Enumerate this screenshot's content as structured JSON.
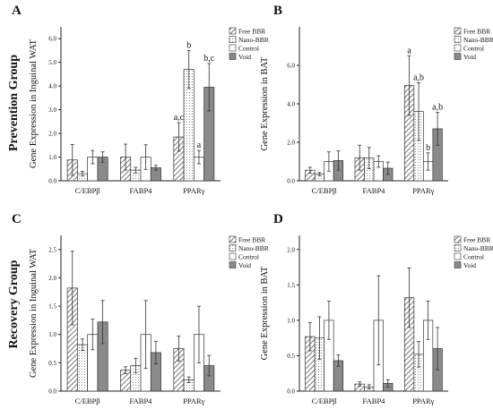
{
  "group_labels": [
    "Prevention Group",
    "Recovery Group"
  ],
  "colors": {
    "bar_stroke": "#333333",
    "axis": "#222222",
    "errbar": "#333333"
  },
  "chart_data": [
    {
      "type": "bar",
      "panel": "A",
      "ylabel": "Gene Expression in Inguinal WAT",
      "categories": [
        "C/EBPβ",
        "FABP4",
        "PPARγ"
      ],
      "ylim": [
        0,
        6.5
      ],
      "yticks": [
        "0.0",
        "1.0",
        "2.0",
        "3.0",
        "4.0",
        "5.0",
        "6.0"
      ],
      "legend_position": "top-right",
      "series": [
        {
          "name": "Free BBR",
          "pattern": "hatch",
          "values": [
            0.88,
            1.0,
            1.85
          ],
          "errors": [
            0.65,
            0.55,
            0.6
          ]
        },
        {
          "name": "Nano-BBR",
          "pattern": "dots",
          "values": [
            0.3,
            0.45,
            4.7
          ],
          "errors": [
            0.1,
            0.12,
            0.8
          ]
        },
        {
          "name": "Control",
          "pattern": "white",
          "values": [
            1.0,
            1.0,
            1.0
          ],
          "errors": [
            0.28,
            0.52,
            0.28
          ]
        },
        {
          "name": "Void",
          "pattern": "gray",
          "values": [
            1.0,
            0.55,
            3.95
          ],
          "errors": [
            0.22,
            0.1,
            1.0
          ]
        }
      ],
      "annotations": [
        {
          "text": "a,c",
          "category": 2,
          "series": 0
        },
        {
          "text": "b",
          "category": 2,
          "series": 1
        },
        {
          "text": "a",
          "category": 2,
          "series": 2
        },
        {
          "text": "b,c",
          "category": 2,
          "series": 3
        }
      ]
    },
    {
      "type": "bar",
      "panel": "B",
      "ylabel": "Gene Expression in BAT",
      "categories": [
        "C/EBPβ",
        "FABP4",
        "PPARγ"
      ],
      "ylim": [
        0,
        8
      ],
      "yticks": [
        "0.0",
        "2.0",
        "4.0",
        "6.0"
      ],
      "legend_position": "top-right",
      "series": [
        {
          "name": "Free BBR",
          "pattern": "hatch",
          "values": [
            0.55,
            1.2,
            4.95
          ],
          "errors": [
            0.15,
            0.65,
            1.55
          ]
        },
        {
          "name": "Nano-BBR",
          "pattern": "dots",
          "values": [
            0.35,
            1.18,
            3.6
          ],
          "errors": [
            0.08,
            0.55,
            1.5
          ]
        },
        {
          "name": "Control",
          "pattern": "white",
          "values": [
            1.0,
            1.0,
            1.0
          ],
          "errors": [
            0.5,
            0.3,
            0.45
          ]
        },
        {
          "name": "Void",
          "pattern": "gray",
          "values": [
            1.05,
            0.65,
            2.7
          ],
          "errors": [
            0.5,
            0.32,
            0.85
          ]
        }
      ],
      "annotations": [
        {
          "text": "a",
          "category": 2,
          "series": 0
        },
        {
          "text": "a,b",
          "category": 2,
          "series": 1
        },
        {
          "text": "b",
          "category": 2,
          "series": 2
        },
        {
          "text": "a,b",
          "category": 2,
          "series": 3
        }
      ]
    },
    {
      "type": "bar",
      "panel": "C",
      "ylabel": "Gene Expression in Inguinal WAT",
      "categories": [
        "C/EBPβ",
        "FABP4",
        "PPARγ"
      ],
      "ylim": [
        0,
        2.75
      ],
      "yticks": [
        "0.0",
        "0.5",
        "1.0",
        "1.5",
        "2.0",
        "2.5"
      ],
      "legend_position": "top-right",
      "series": [
        {
          "name": "Free BBR",
          "pattern": "hatch",
          "values": [
            1.82,
            0.37,
            0.75
          ],
          "errors": [
            0.65,
            0.06,
            0.22
          ]
        },
        {
          "name": "Nano-BBR",
          "pattern": "dots",
          "values": [
            0.82,
            0.45,
            0.2
          ],
          "errors": [
            0.1,
            0.13,
            0.05
          ]
        },
        {
          "name": "Control",
          "pattern": "white",
          "values": [
            1.0,
            1.0,
            1.0
          ],
          "errors": [
            0.27,
            0.6,
            0.5
          ]
        },
        {
          "name": "Void",
          "pattern": "gray",
          "values": [
            1.22,
            0.68,
            0.45
          ],
          "errors": [
            0.38,
            0.2,
            0.18
          ]
        }
      ],
      "annotations": []
    },
    {
      "type": "bar",
      "panel": "D",
      "ylabel": "Gene Expression in BAT",
      "categories": [
        "C/EBPβ",
        "FABP4",
        "PPARγ"
      ],
      "ylim": [
        0,
        2.2
      ],
      "yticks": [
        "0.0",
        "0.5",
        "1.0",
        "1.5",
        "2.0"
      ],
      "legend_position": "top-right",
      "series": [
        {
          "name": "Free BBR",
          "pattern": "hatch",
          "values": [
            0.77,
            0.1,
            1.32
          ],
          "errors": [
            0.2,
            0.03,
            0.42
          ]
        },
        {
          "name": "Nano-BBR",
          "pattern": "dots",
          "values": [
            0.75,
            0.06,
            0.52
          ],
          "errors": [
            0.3,
            0.03,
            0.18
          ]
        },
        {
          "name": "Control",
          "pattern": "white",
          "values": [
            1.0,
            1.0,
            1.0
          ],
          "errors": [
            0.27,
            0.63,
            0.27
          ]
        },
        {
          "name": "Void",
          "pattern": "gray",
          "values": [
            0.43,
            0.11,
            0.6
          ],
          "errors": [
            0.08,
            0.05,
            0.3
          ]
        }
      ],
      "annotations": []
    }
  ]
}
